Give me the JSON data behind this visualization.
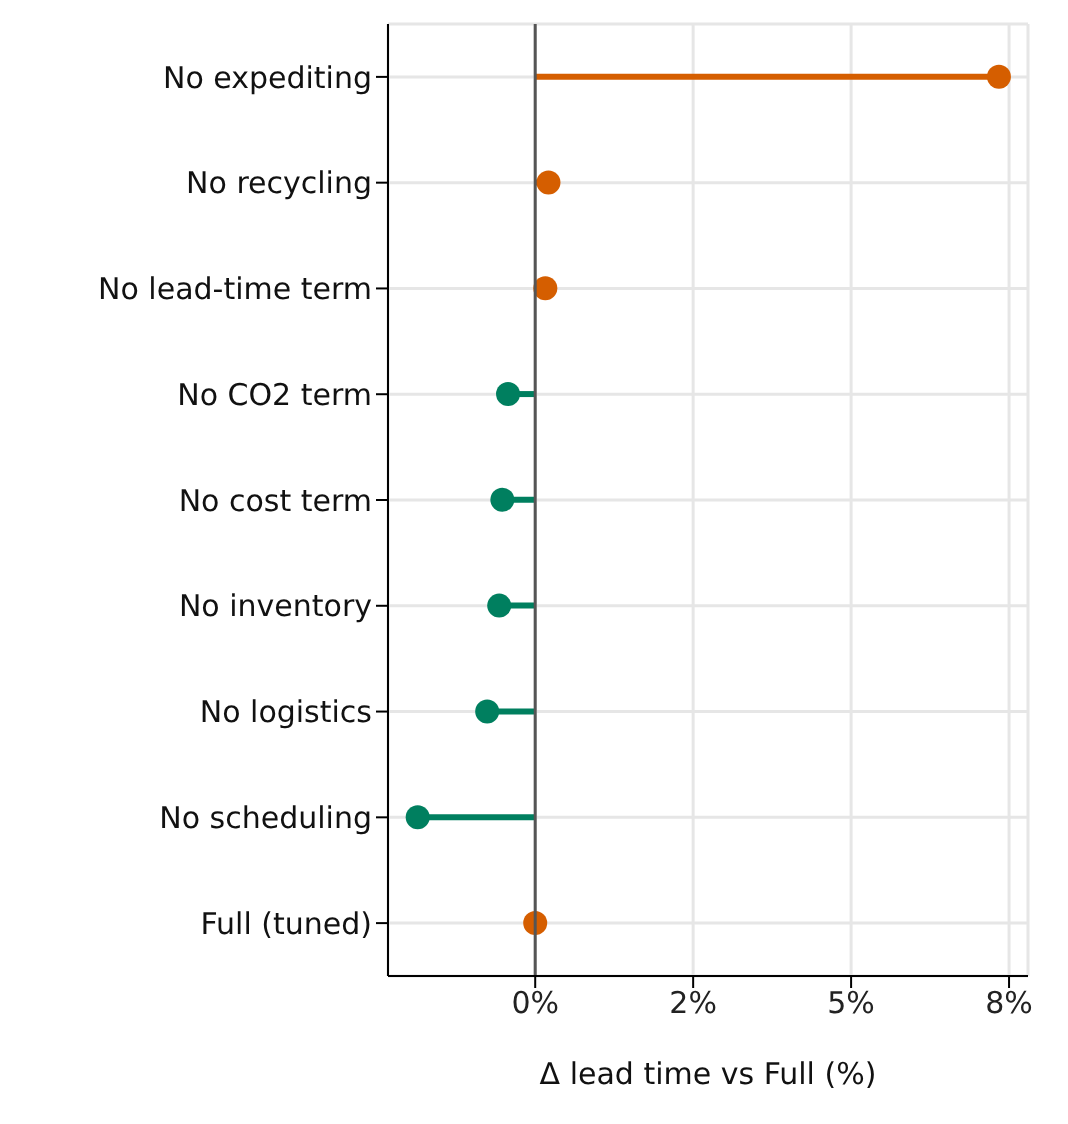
{
  "chart_data": {
    "type": "lollipop",
    "orientation": "horizontal",
    "xlabel": "Δ lead time vs Full (%)",
    "categories": [
      "No expediting",
      "No recycling",
      "No lead-time term",
      "No CO2 term",
      "No cost term",
      "No inventory",
      "No logistics",
      "No scheduling",
      "Full (tuned)"
    ],
    "values": [
      7.34,
      0.21,
      0.16,
      -0.43,
      -0.52,
      -0.57,
      -0.76,
      -1.86,
      0
    ],
    "colors": [
      "#d55e00",
      "#d55e00",
      "#d55e00",
      "#007f5f",
      "#007f5f",
      "#007f5f",
      "#007f5f",
      "#007f5f",
      "#d55e00"
    ],
    "xlim": [
      -2.33,
      7.8
    ],
    "xticks": [
      {
        "value": 0,
        "label": "0%"
      },
      {
        "value": 2.5,
        "label": "2%"
      },
      {
        "value": 5,
        "label": "5%"
      },
      {
        "value": 7.5,
        "label": "8%"
      }
    ],
    "ref_lines": [
      {
        "axis": "x",
        "value": 0,
        "color": "#555555"
      }
    ],
    "grid": true,
    "legend": false,
    "marker": "circle"
  }
}
